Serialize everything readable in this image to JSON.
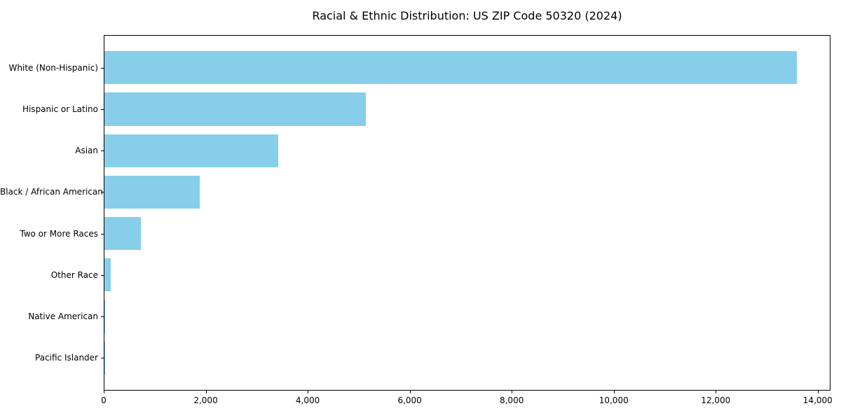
{
  "chart_data": {
    "type": "bar",
    "orientation": "horizontal",
    "title": "Racial & Ethnic Distribution: US ZIP Code 50320 (2024)",
    "categories": [
      "White (Non-Hispanic)",
      "Hispanic or Latino",
      "Asian",
      "Black / African American",
      "Two or More Races",
      "Other Race",
      "Native American",
      "Pacific Islander"
    ],
    "values": [
      13580,
      5130,
      3410,
      1870,
      715,
      125,
      15,
      5
    ],
    "xlabel": "",
    "ylabel": "",
    "xlim": [
      0,
      14250
    ],
    "x_ticks": [
      0,
      2000,
      4000,
      6000,
      8000,
      10000,
      12000,
      14000
    ],
    "x_tick_labels": [
      "0",
      "2,000",
      "4,000",
      "6,000",
      "8,000",
      "10,000",
      "12,000",
      "14,000"
    ],
    "bar_color": "#87CEEB",
    "grid": false,
    "legend": null
  }
}
